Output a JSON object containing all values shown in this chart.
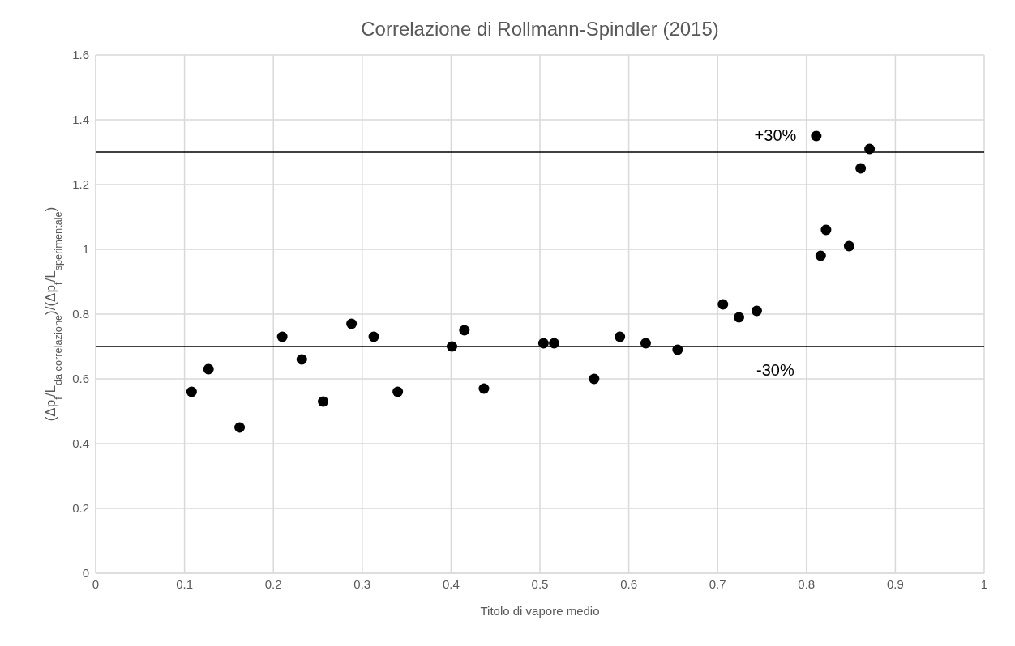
{
  "chart_data": {
    "type": "scatter",
    "title": "Correlazione di Rollmann-Spindler (2015)",
    "xlabel": "Titolo di vapore medio",
    "ylabel": "(Δp$_{f}$/L$_{da correlazione}$)/(Δp$_{f}$/L$_{sperimentale}$)",
    "x": [
      0.108,
      0.127,
      0.162,
      0.21,
      0.232,
      0.256,
      0.288,
      0.313,
      0.34,
      0.401,
      0.415,
      0.437,
      0.504,
      0.516,
      0.561,
      0.59,
      0.619,
      0.655,
      0.706,
      0.724,
      0.744,
      0.811,
      0.816,
      0.822,
      0.848,
      0.861,
      0.871
    ],
    "series": [
      {
        "color": "#000000",
        "values": [
          0.56,
          0.63,
          0.45,
          0.73,
          0.66,
          0.53,
          0.77,
          0.73,
          0.56,
          0.7,
          0.75,
          0.57,
          0.71,
          0.71,
          0.6,
          0.73,
          0.71,
          0.69,
          0.83,
          0.79,
          0.81,
          1.35,
          0.98,
          1.06,
          1.01,
          1.25,
          1.31
        ]
      }
    ],
    "xlim": [
      0,
      1
    ],
    "xticks": [
      0,
      0.1,
      0.2,
      0.3,
      0.4,
      0.5,
      0.6,
      0.7,
      0.8,
      0.9,
      1
    ],
    "ylim": [
      0,
      1.6
    ],
    "yticks": [
      0,
      0.2,
      0.4,
      0.6,
      0.8,
      1,
      1.2,
      1.4,
      1.6
    ],
    "ref_lines": [
      {
        "axis": "y",
        "value": 1.3,
        "color": "#000000"
      },
      {
        "axis": "y",
        "value": 0.7,
        "color": "#000000"
      }
    ],
    "annotations": [
      "+30%",
      "-30%"
    ],
    "grid": true,
    "legend": false,
    "marker": "circle"
  }
}
